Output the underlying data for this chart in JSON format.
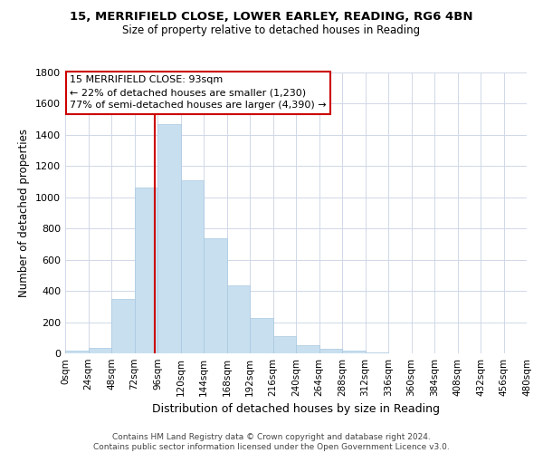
{
  "title": "15, MERRIFIELD CLOSE, LOWER EARLEY, READING, RG6 4BN",
  "subtitle": "Size of property relative to detached houses in Reading",
  "xlabel": "Distribution of detached houses by size in Reading",
  "ylabel": "Number of detached properties",
  "bar_color": "#c8dff0",
  "bar_edge_color": "#a8c8e0",
  "bin_edges": [
    0,
    24,
    48,
    72,
    96,
    120,
    144,
    168,
    192,
    216,
    240,
    264,
    288,
    312,
    336,
    360,
    384,
    408,
    432,
    456,
    480
  ],
  "bar_heights": [
    15,
    35,
    350,
    1065,
    1470,
    1110,
    735,
    435,
    225,
    110,
    55,
    30,
    15,
    5,
    2,
    1,
    0,
    0,
    0,
    0
  ],
  "tick_labels": [
    "0sqm",
    "24sqm",
    "48sqm",
    "72sqm",
    "96sqm",
    "120sqm",
    "144sqm",
    "168sqm",
    "192sqm",
    "216sqm",
    "240sqm",
    "264sqm",
    "288sqm",
    "312sqm",
    "336sqm",
    "360sqm",
    "384sqm",
    "408sqm",
    "432sqm",
    "456sqm",
    "480sqm"
  ],
  "ylim": [
    0,
    1800
  ],
  "yticks": [
    0,
    200,
    400,
    600,
    800,
    1000,
    1200,
    1400,
    1600,
    1800
  ],
  "property_line_x": 93,
  "annotation_title": "15 MERRIFIELD CLOSE: 93sqm",
  "annotation_line1": "← 22% of detached houses are smaller (1,230)",
  "annotation_line2": "77% of semi-detached houses are larger (4,390) →",
  "annotation_box_color": "#ffffff",
  "annotation_box_edge_color": "#cc0000",
  "property_line_color": "#cc0000",
  "footer_line1": "Contains HM Land Registry data © Crown copyright and database right 2024.",
  "footer_line2": "Contains public sector information licensed under the Open Government Licence v3.0.",
  "background_color": "#ffffff",
  "grid_color": "#d0d8e8"
}
